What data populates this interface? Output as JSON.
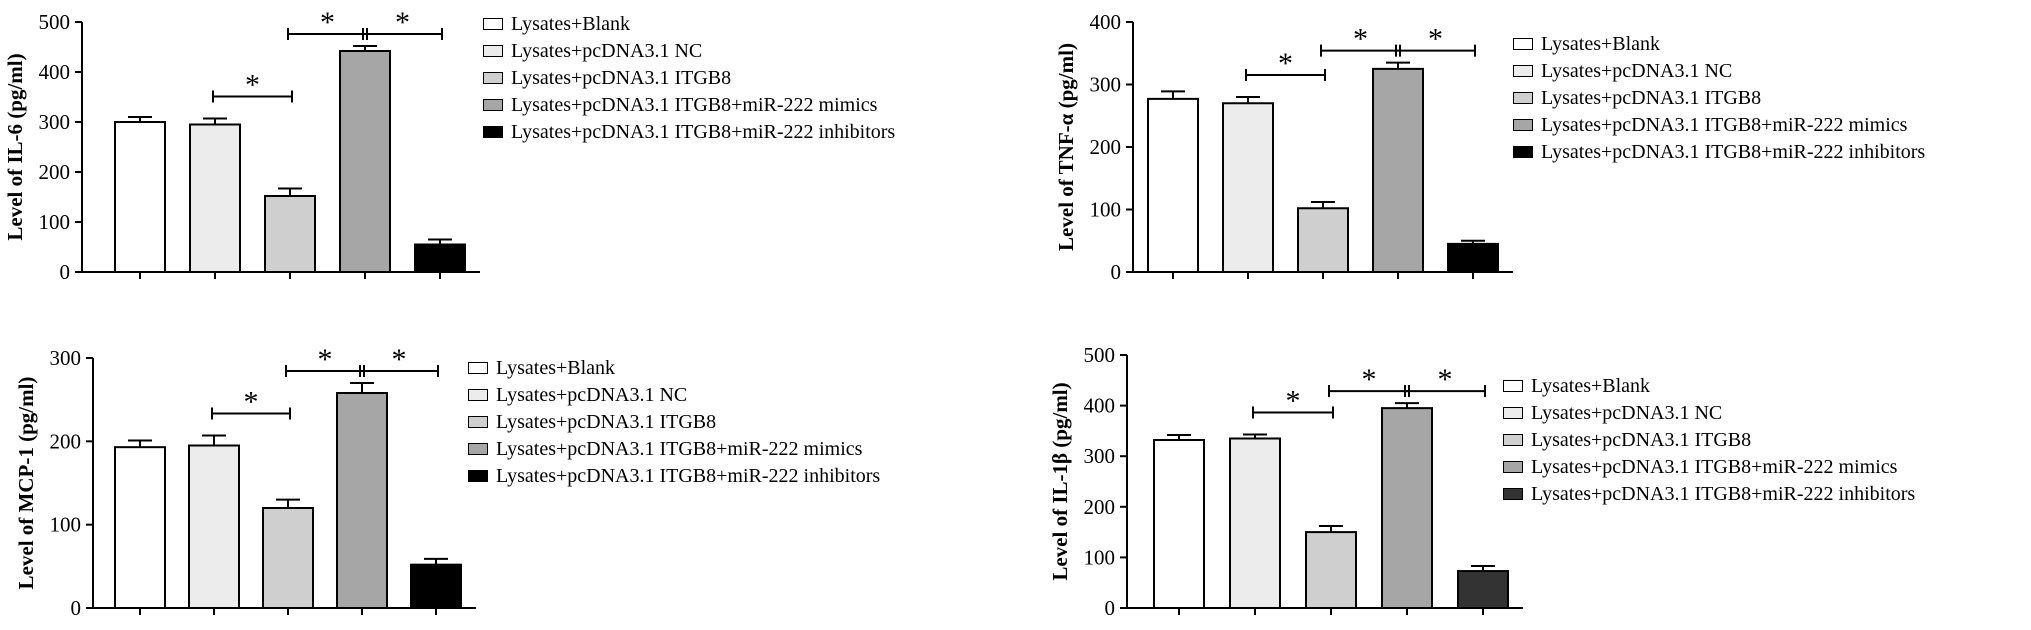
{
  "chart_data": [
    {
      "type": "bar",
      "ylabel": "Level of IL-6 (pg/ml)",
      "ylim": [
        0,
        500
      ],
      "yticks": [
        0,
        100,
        200,
        300,
        400,
        500
      ],
      "categories": [
        "Lysates+Blank",
        "Lysates+pcDNA3.1 NC",
        "Lysates+pcDNA3.1 ITGB8",
        "Lysates+pcDNA3.1 ITGB8+miR-222 mimics",
        "Lysates+pcDNA3.1 ITGB8+miR-222 inhibitors"
      ],
      "values": [
        300,
        295,
        152,
        442,
        55
      ],
      "errors": [
        10,
        12,
        15,
        10,
        10
      ],
      "colors": [
        "#ffffff",
        "#ececec",
        "#cfcfcf",
        "#a6a6a6",
        "#000000"
      ],
      "significance": [
        {
          "from": 1,
          "to": 2,
          "label": "*"
        },
        {
          "from": 2,
          "to": 3,
          "label": "*"
        },
        {
          "from": 3,
          "to": 4,
          "label": "*"
        }
      ],
      "legend": [
        "Lysates+Blank",
        "Lysates+pcDNA3.1 NC",
        "Lysates+pcDNA3.1 ITGB8",
        "Lysates+pcDNA3.1 ITGB8+miR-222 mimics",
        "Lysates+pcDNA3.1 ITGB8+miR-222 inhibitors"
      ]
    },
    {
      "type": "bar",
      "ylabel": "Level of TNF-α (pg/ml)",
      "ylim": [
        0,
        400
      ],
      "yticks": [
        0,
        100,
        200,
        300,
        400
      ],
      "categories": [
        "Lysates+Blank",
        "Lysates+pcDNA3.1 NC",
        "Lysates+pcDNA3.1 ITGB8",
        "Lysates+pcDNA3.1 ITGB8+miR-222 mimics",
        "Lysates+pcDNA3.1 ITGB8+miR-222 inhibitors"
      ],
      "values": [
        277,
        270,
        102,
        325,
        45
      ],
      "errors": [
        12,
        10,
        10,
        10,
        5
      ],
      "colors": [
        "#ffffff",
        "#ececec",
        "#cfcfcf",
        "#a6a6a6",
        "#000000"
      ],
      "significance": [
        {
          "from": 1,
          "to": 2,
          "label": "*"
        },
        {
          "from": 2,
          "to": 3,
          "label": "*"
        },
        {
          "from": 3,
          "to": 4,
          "label": "*"
        }
      ],
      "legend": [
        "Lysates+Blank",
        "Lysates+pcDNA3.1 NC",
        "Lysates+pcDNA3.1 ITGB8",
        "Lysates+pcDNA3.1 ITGB8+miR-222 mimics",
        "Lysates+pcDNA3.1 ITGB8+miR-222 inhibitors"
      ]
    },
    {
      "type": "bar",
      "ylabel": "Level of MCP-1 (pg/ml)",
      "ylim": [
        0,
        300
      ],
      "yticks": [
        0,
        100,
        200,
        300
      ],
      "categories": [
        "Lysates+Blank",
        "Lysates+pcDNA3.1 NC",
        "Lysates+pcDNA3.1 ITGB8",
        "Lysates+pcDNA3.1 ITGB8+miR-222 mimics",
        "Lysates+pcDNA3.1 ITGB8+miR-222 inhibitors"
      ],
      "values": [
        193,
        195,
        120,
        258,
        52
      ],
      "errors": [
        8,
        12,
        10,
        12,
        7
      ],
      "colors": [
        "#ffffff",
        "#ececec",
        "#cfcfcf",
        "#a6a6a6",
        "#000000"
      ],
      "significance": [
        {
          "from": 1,
          "to": 2,
          "label": "*"
        },
        {
          "from": 2,
          "to": 3,
          "label": "*"
        },
        {
          "from": 3,
          "to": 4,
          "label": "*"
        }
      ],
      "legend": [
        "Lysates+Blank",
        "Lysates+pcDNA3.1 NC",
        "Lysates+pcDNA3.1 ITGB8",
        "Lysates+pcDNA3.1 ITGB8+miR-222 mimics",
        "Lysates+pcDNA3.1 ITGB8+miR-222 inhibitors"
      ]
    },
    {
      "type": "bar",
      "ylabel": "Level of IL-1β (pg/ml)",
      "ylim": [
        0,
        500
      ],
      "yticks": [
        0,
        100,
        200,
        300,
        400,
        500
      ],
      "categories": [
        "Lysates+Blank",
        "Lysates+pcDNA3.1 NC",
        "Lysates+pcDNA3.1 ITGB8",
        "Lysates+pcDNA3.1 ITGB8+miR-222 mimics",
        "Lysates+pcDNA3.1 ITGB8+miR-222 inhibitors"
      ],
      "values": [
        332,
        335,
        150,
        395,
        73
      ],
      "errors": [
        10,
        8,
        12,
        10,
        10
      ],
      "colors": [
        "#ffffff",
        "#ececec",
        "#cfcfcf",
        "#a6a6a6",
        "#333333"
      ],
      "significance": [
        {
          "from": 1,
          "to": 2,
          "label": "*"
        },
        {
          "from": 2,
          "to": 3,
          "label": "*"
        },
        {
          "from": 3,
          "to": 4,
          "label": "*"
        }
      ],
      "legend": [
        "Lysates+Blank",
        "Lysates+pcDNA3.1 NC",
        "Lysates+pcDNA3.1 ITGB8",
        "Lysates+pcDNA3.1 ITGB8+miR-222 mimics",
        "Lysates+pcDNA3.1 ITGB8+miR-222 inhibitors"
      ]
    }
  ]
}
